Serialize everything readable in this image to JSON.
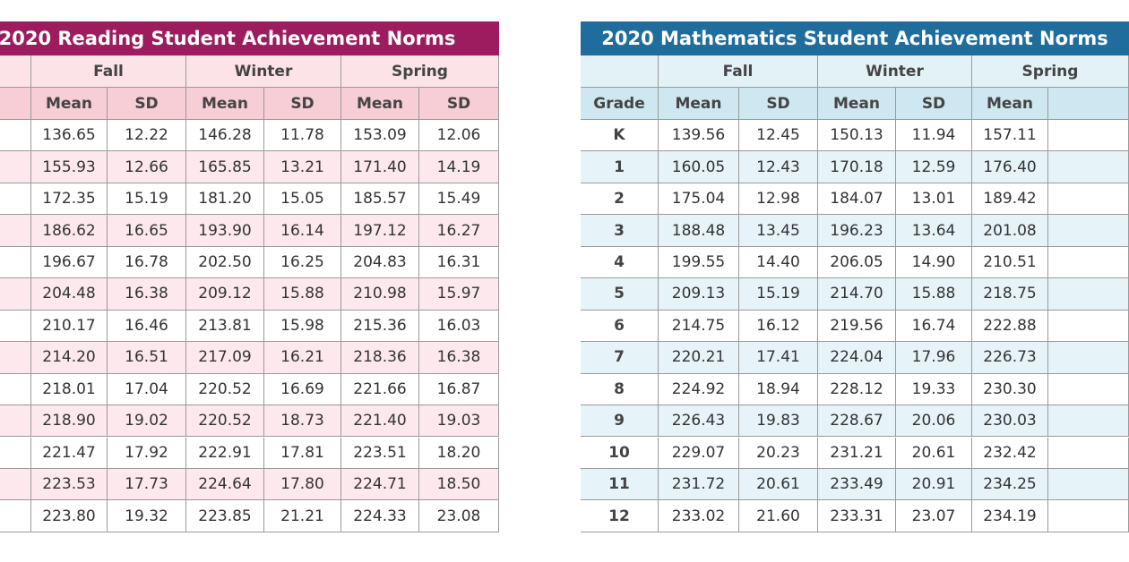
{
  "reading": {
    "title": "2020 Reading Student Achievement Norms",
    "seasons": [
      "Fall",
      "Winter",
      "Spring"
    ],
    "subheaders": [
      "Mean",
      "SD",
      "Mean",
      "SD",
      "Mean",
      "SD"
    ],
    "rows": [
      [
        "136.65",
        "12.22",
        "146.28",
        "11.78",
        "153.09",
        "12.06"
      ],
      [
        "155.93",
        "12.66",
        "165.85",
        "13.21",
        "171.40",
        "14.19"
      ],
      [
        "172.35",
        "15.19",
        "181.20",
        "15.05",
        "185.57",
        "15.49"
      ],
      [
        "186.62",
        "16.65",
        "193.90",
        "16.14",
        "197.12",
        "16.27"
      ],
      [
        "196.67",
        "16.78",
        "202.50",
        "16.25",
        "204.83",
        "16.31"
      ],
      [
        "204.48",
        "16.38",
        "209.12",
        "15.88",
        "210.98",
        "15.97"
      ],
      [
        "210.17",
        "16.46",
        "213.81",
        "15.98",
        "215.36",
        "16.03"
      ],
      [
        "214.20",
        "16.51",
        "217.09",
        "16.21",
        "218.36",
        "16.38"
      ],
      [
        "218.01",
        "17.04",
        "220.52",
        "16.69",
        "221.66",
        "16.87"
      ],
      [
        "218.90",
        "19.02",
        "220.52",
        "18.73",
        "221.40",
        "19.03"
      ],
      [
        "221.47",
        "17.92",
        "222.91",
        "17.81",
        "223.51",
        "18.20"
      ],
      [
        "223.53",
        "17.73",
        "224.64",
        "17.80",
        "224.71",
        "18.50"
      ],
      [
        "223.80",
        "19.32",
        "223.85",
        "21.21",
        "224.33",
        "23.08"
      ]
    ]
  },
  "mathematics": {
    "title": "2020 Mathematics Student Achievement Norms",
    "seasons": [
      "Fall",
      "Winter",
      "Spring"
    ],
    "subheaders": [
      "Grade",
      "Mean",
      "SD",
      "Mean",
      "SD",
      "Mean"
    ],
    "rows": [
      [
        "K",
        "139.56",
        "12.45",
        "150.13",
        "11.94",
        "157.11"
      ],
      [
        "1",
        "160.05",
        "12.43",
        "170.18",
        "12.59",
        "176.40"
      ],
      [
        "2",
        "175.04",
        "12.98",
        "184.07",
        "13.01",
        "189.42"
      ],
      [
        "3",
        "188.48",
        "13.45",
        "196.23",
        "13.64",
        "201.08"
      ],
      [
        "4",
        "199.55",
        "14.40",
        "206.05",
        "14.90",
        "210.51"
      ],
      [
        "5",
        "209.13",
        "15.19",
        "214.70",
        "15.88",
        "218.75"
      ],
      [
        "6",
        "214.75",
        "16.12",
        "219.56",
        "16.74",
        "222.88"
      ],
      [
        "7",
        "220.21",
        "17.41",
        "224.04",
        "17.96",
        "226.73"
      ],
      [
        "8",
        "224.92",
        "18.94",
        "228.12",
        "19.33",
        "230.30"
      ],
      [
        "9",
        "226.43",
        "19.83",
        "228.67",
        "20.06",
        "230.03"
      ],
      [
        "10",
        "229.07",
        "20.23",
        "231.21",
        "20.61",
        "232.42"
      ],
      [
        "11",
        "231.72",
        "20.61",
        "233.49",
        "20.91",
        "234.25"
      ],
      [
        "12",
        "233.02",
        "21.60",
        "233.31",
        "23.07",
        "234.19"
      ]
    ]
  }
}
